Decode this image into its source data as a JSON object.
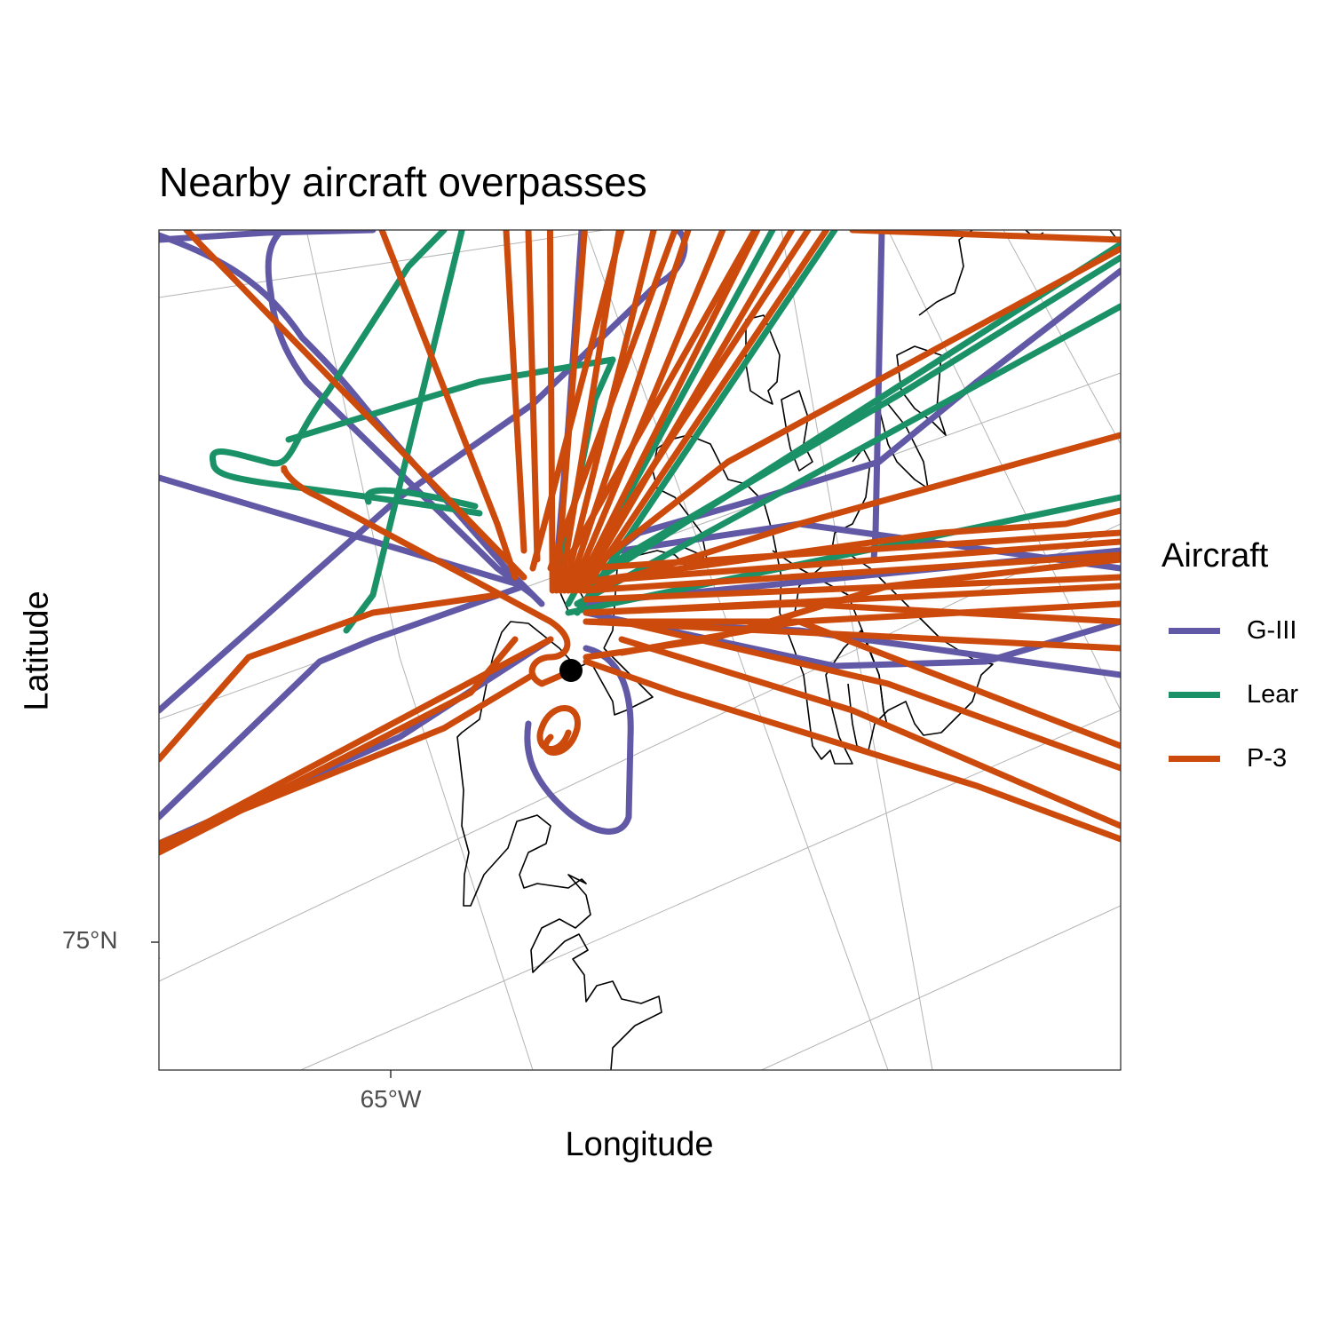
{
  "chart_data": {
    "type": "map-tracks",
    "title": "Nearby aircraft overpasses",
    "xlabel": "Longitude",
    "ylabel": "Latitude",
    "x_ticks": [
      "65°W"
    ],
    "y_ticks": [
      "75°N"
    ],
    "grid": true,
    "legend": {
      "title": "Aircraft",
      "placement": "right",
      "entries": [
        {
          "name": "G-III",
          "color": "#6159a6"
        },
        {
          "name": "Lear",
          "color": "#1b9168"
        },
        {
          "name": "P-3",
          "color": "#cc4a0c"
        }
      ]
    },
    "site_marker": {
      "color": "#000000",
      "label": ""
    },
    "series": [
      {
        "name": "G-III",
        "color": "#6159a6",
        "track_count": 14
      },
      {
        "name": "Lear",
        "color": "#1b9168",
        "track_count": 12
      },
      {
        "name": "P-3",
        "color": "#cc4a0c",
        "track_count": 40
      }
    ]
  },
  "colors": {
    "coastline": "#000000",
    "graticule": "#b3b3b3",
    "panel_border": "#333333",
    "axis_text": "#4d4d4d"
  }
}
